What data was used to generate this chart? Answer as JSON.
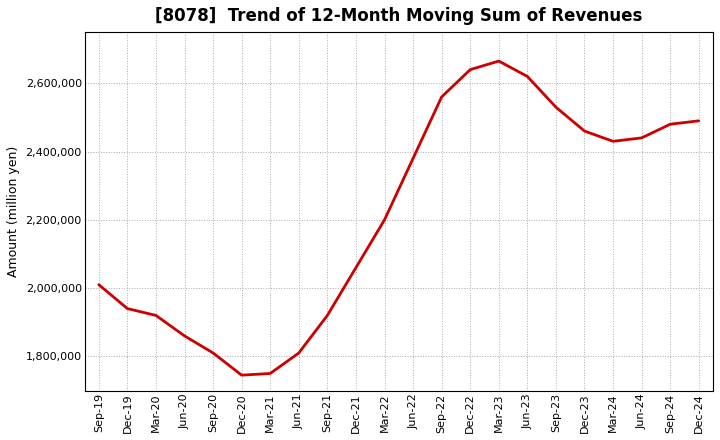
{
  "title": "[8078]  Trend of 12-Month Moving Sum of Revenues",
  "ylabel": "Amount (million yen)",
  "line_color": "#cc0000",
  "line_width": 2.0,
  "background_color": "#ffffff",
  "plot_bg_color": "#ffffff",
  "grid_color": "#aaaaaa",
  "ylim": [
    1700000,
    2750000
  ],
  "yticks": [
    1800000,
    2000000,
    2200000,
    2400000,
    2600000
  ],
  "x_labels": [
    "Sep-19",
    "Dec-19",
    "Mar-20",
    "Jun-20",
    "Sep-20",
    "Dec-20",
    "Mar-21",
    "Jun-21",
    "Sep-21",
    "Dec-21",
    "Mar-22",
    "Jun-22",
    "Sep-22",
    "Dec-22",
    "Mar-23",
    "Jun-23",
    "Sep-23",
    "Dec-23",
    "Mar-24",
    "Jun-24",
    "Sep-24",
    "Dec-24"
  ],
  "y_values": [
    2010000,
    1940000,
    1920000,
    1860000,
    1810000,
    1745000,
    1750000,
    1810000,
    1920000,
    2060000,
    2200000,
    2380000,
    2560000,
    2640000,
    2665000,
    2620000,
    2530000,
    2460000,
    2430000,
    2440000,
    2480000,
    2490000
  ],
  "title_fontsize": 12,
  "ylabel_fontsize": 9,
  "tick_fontsize": 8
}
